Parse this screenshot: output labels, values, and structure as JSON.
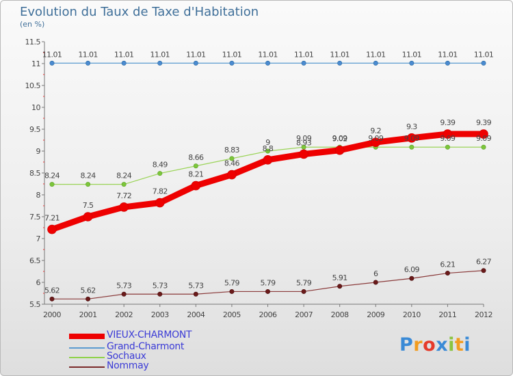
{
  "header": {
    "title": "Evolution du Taux de Taxe d'Habitation",
    "unit": "(en %)"
  },
  "chart_data": {
    "type": "line",
    "title": "Evolution du Taux de Taxe d'Habitation",
    "ylabel": "(en %)",
    "xlabel": "",
    "ylim": [
      5.5,
      11.5
    ],
    "yticks": [
      "5.5",
      "6",
      "6.5",
      "7",
      "7.5",
      "8",
      "8.5",
      "9",
      "9.5",
      "10",
      "10.5",
      "11",
      "11.5"
    ],
    "x": [
      "2000",
      "2001",
      "2002",
      "2003",
      "2004",
      "2005",
      "2006",
      "2007",
      "2008",
      "2009",
      "2010",
      "2011",
      "2012"
    ],
    "grid": false,
    "legend_position": "bottom-left",
    "series": [
      {
        "name": "VIEUX-CHARMONT",
        "color": "#ee0000",
        "values": [
          7.21,
          7.5,
          7.72,
          7.82,
          8.21,
          8.46,
          8.8,
          8.93,
          9.02,
          9.2,
          9.3,
          9.39,
          9.39
        ],
        "labels": [
          "7.21",
          "7.5",
          "7.72",
          "7.82",
          "8.21",
          "8.46",
          "8.8",
          "8.93",
          "9.02",
          "9.2",
          "9.3",
          "9.39",
          "9.39"
        ]
      },
      {
        "name": "Grand-Charmont",
        "color": "#5b9bd0",
        "values": [
          11.01,
          11.01,
          11.01,
          11.01,
          11.01,
          11.01,
          11.01,
          11.01,
          11.01,
          11.01,
          11.01,
          11.01,
          11.01
        ],
        "labels": [
          "11.01",
          "11.01",
          "11.01",
          "11.01",
          "11.01",
          "11.01",
          "11.01",
          "11.01",
          "11.01",
          "11.01",
          "11.01",
          "11.01",
          "11.01"
        ]
      },
      {
        "name": "Sochaux",
        "color": "#8fd24a",
        "values": [
          8.24,
          8.24,
          8.24,
          8.49,
          8.66,
          8.83,
          9.0,
          9.09,
          9.09,
          9.09,
          9.09,
          9.09,
          9.09
        ],
        "labels": [
          "8.24",
          "8.24",
          "8.24",
          "8.49",
          "8.66",
          "8.83",
          "9",
          "9.09",
          "9.09",
          "9.09",
          "9.09",
          "9.09",
          "9.09"
        ]
      },
      {
        "name": "Nommay",
        "color": "#7a2a2a",
        "values": [
          5.62,
          5.62,
          5.73,
          5.73,
          5.73,
          5.79,
          5.79,
          5.79,
          5.91,
          6.0,
          6.09,
          6.21,
          6.27
        ],
        "labels": [
          "5.62",
          "5.62",
          "5.73",
          "5.73",
          "5.73",
          "5.79",
          "5.79",
          "5.79",
          "5.91",
          "6",
          "6.09",
          "6.21",
          "6.27"
        ]
      }
    ]
  },
  "legend": {
    "items": [
      {
        "label": "VIEUX-CHARMONT",
        "color": "#ee0000"
      },
      {
        "label": "Grand-Charmont",
        "color": "#5b9bd0"
      },
      {
        "label": "Sochaux",
        "color": "#8fd24a"
      },
      {
        "label": "Nommay",
        "color": "#7a2a2a"
      }
    ]
  },
  "logo": {
    "letters": [
      "P",
      "r",
      "o",
      "x",
      "i",
      "t",
      "i"
    ],
    "colors": [
      "#3a8ad6",
      "#f29c1f",
      "#e53a2a",
      "#3a8ad6",
      "#8ac43f",
      "#f29c1f",
      "#3a8ad6"
    ]
  }
}
